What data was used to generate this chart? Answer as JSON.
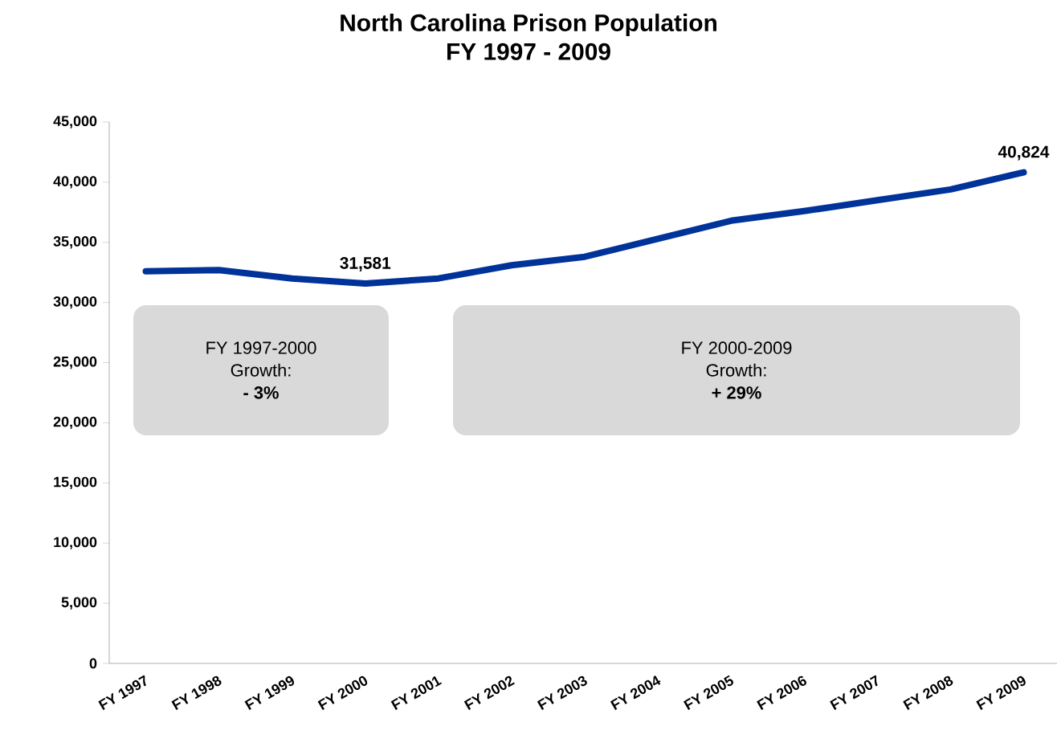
{
  "chart_data": {
    "type": "line",
    "title": "North Carolina Prison Population",
    "subtitle": "FY 1997 - 2009",
    "categories": [
      "FY 1997",
      "FY 1998",
      "FY 1999",
      "FY 2000",
      "FY 2001",
      "FY 2002",
      "FY 2003",
      "FY 2004",
      "FY 2005",
      "FY 2006",
      "FY 2007",
      "FY 2008",
      "FY 2009"
    ],
    "values": [
      32600,
      32700,
      32000,
      31581,
      32000,
      33100,
      33800,
      35300,
      36800,
      37600,
      38500,
      39400,
      40824
    ],
    "value_labels": [
      null,
      null,
      null,
      "31,581",
      null,
      null,
      null,
      null,
      null,
      null,
      null,
      null,
      "40,824"
    ],
    "color": "#003399",
    "ylim": [
      0,
      45000
    ],
    "yticks": [
      0,
      {
        "value": 5000,
        "label": "5,000"
      },
      {
        "value": 10000,
        "label": "10,000"
      },
      {
        "value": 15000,
        "label": "15,000"
      },
      {
        "value": 20000,
        "label": "20,000"
      },
      {
        "value": 25000,
        "label": "25,000"
      },
      {
        "value": 30000,
        "label": "30,000"
      },
      {
        "value": 35000,
        "label": "35,000"
      },
      {
        "value": 40000,
        "label": "40,000"
      },
      {
        "value": 45000,
        "label": "45,000"
      }
    ],
    "marker": "none",
    "line_style": "solid",
    "grid": false,
    "annotations": [
      "FY 1997-2000",
      "Growth:",
      "- 3%",
      "FY 2000-2009",
      "Growth:",
      "+ 29%"
    ]
  }
}
